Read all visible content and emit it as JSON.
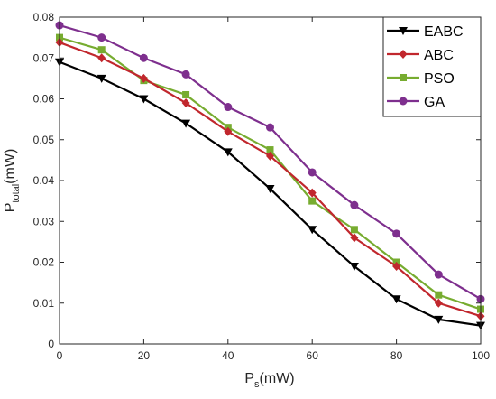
{
  "chart_data": {
    "type": "line",
    "xlabel": "P_s(mW)",
    "ylabel": "P_total(mW)",
    "xlim": [
      0,
      100
    ],
    "ylim": [
      0,
      0.08
    ],
    "x_ticks": [
      0,
      20,
      40,
      60,
      80,
      100
    ],
    "y_ticks": [
      0,
      0.01,
      0.02,
      0.03,
      0.04,
      0.05,
      0.06,
      0.07,
      0.08
    ],
    "grid": false,
    "legend_position": "top-right",
    "x": [
      0,
      10,
      20,
      30,
      40,
      50,
      60,
      70,
      80,
      90,
      100
    ],
    "series": [
      {
        "name": "EABC",
        "color": "#000000",
        "marker": "triangle-down",
        "values": [
          0.069,
          0.065,
          0.06,
          0.054,
          0.047,
          0.038,
          0.028,
          0.019,
          0.011,
          0.006,
          0.0045
        ]
      },
      {
        "name": "ABC",
        "color": "#C1272D",
        "marker": "diamond",
        "values": [
          0.0738,
          0.07,
          0.065,
          0.059,
          0.052,
          0.046,
          0.037,
          0.026,
          0.019,
          0.01,
          0.0068
        ]
      },
      {
        "name": "PSO",
        "color": "#77AC30",
        "marker": "square",
        "values": [
          0.075,
          0.072,
          0.0645,
          0.061,
          0.053,
          0.0475,
          0.035,
          0.028,
          0.02,
          0.012,
          0.0085
        ]
      },
      {
        "name": "GA",
        "color": "#7E2F8E",
        "marker": "circle",
        "values": [
          0.078,
          0.075,
          0.07,
          0.066,
          0.058,
          0.053,
          0.042,
          0.034,
          0.027,
          0.017,
          0.011
        ]
      }
    ]
  }
}
